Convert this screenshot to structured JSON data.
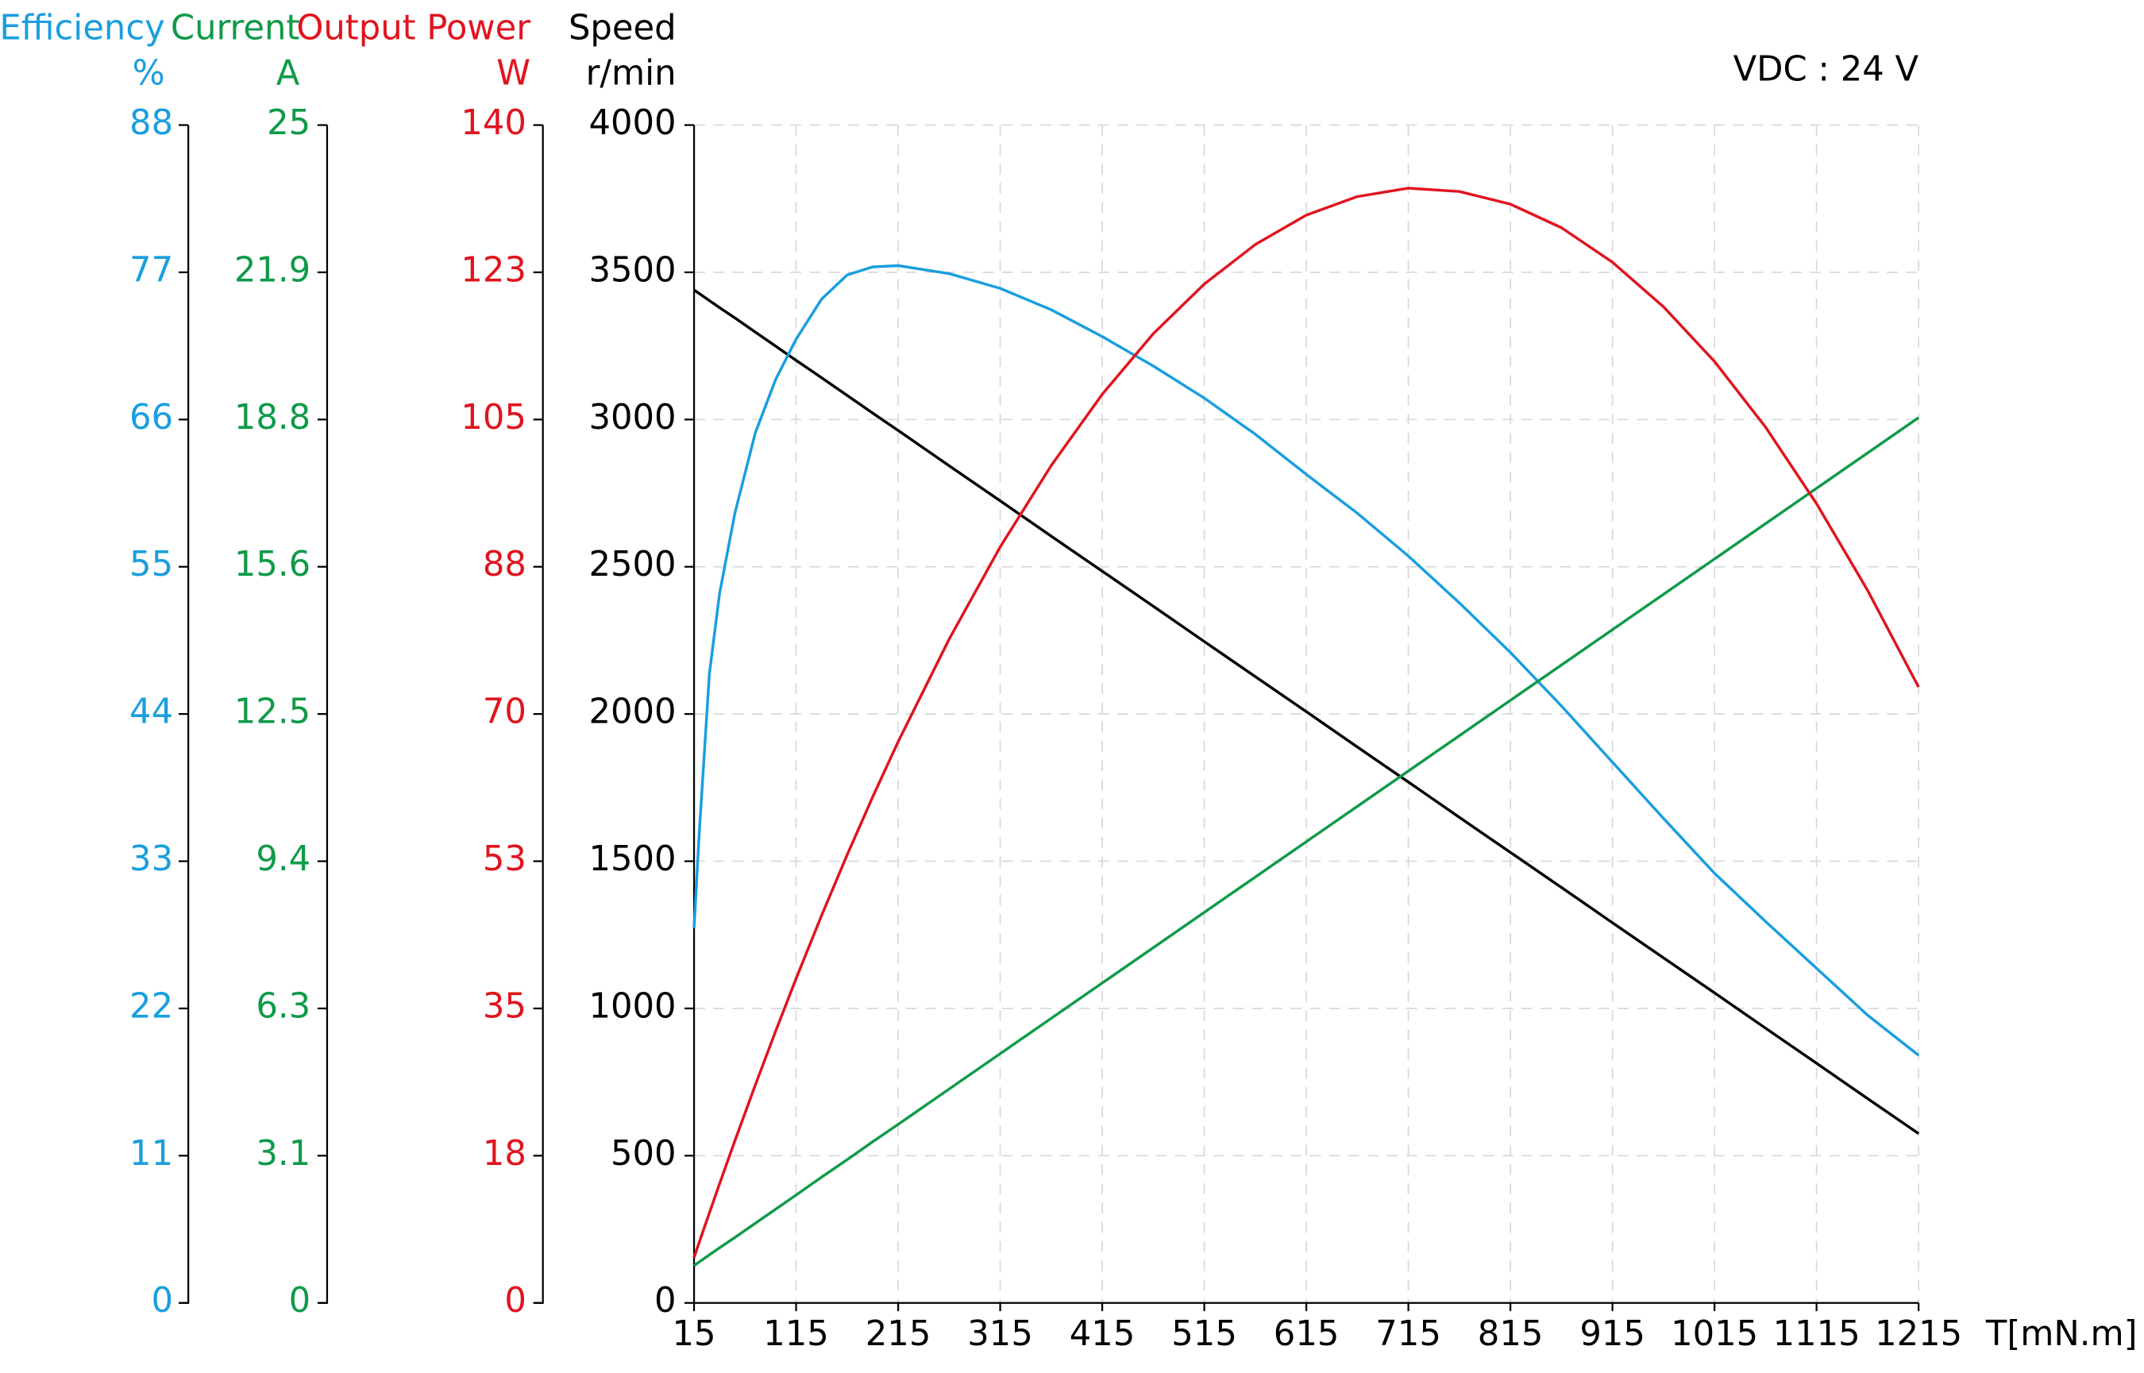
{
  "chart_data": {
    "type": "line",
    "annotation": "VDC : 24 V",
    "x_label": "T[mN.m]",
    "x": [
      15,
      20,
      30,
      40,
      55,
      75,
      95,
      115,
      140,
      165,
      190,
      215,
      265,
      315,
      365,
      415,
      465,
      515,
      565,
      615,
      665,
      715,
      765,
      815,
      865,
      915,
      965,
      1015,
      1065,
      1115,
      1165,
      1215
    ],
    "xlim": [
      15,
      1215
    ],
    "xticks": [
      15,
      115,
      215,
      315,
      415,
      515,
      615,
      715,
      815,
      915,
      1015,
      1115,
      1215
    ],
    "grid": true,
    "y_label": "Speed",
    "y_unit": "r/min",
    "y_color": "#000000",
    "ylim": [
      0,
      4000
    ],
    "yticks": [
      0,
      500,
      1000,
      1500,
      2000,
      2500,
      3000,
      3500,
      4000
    ],
    "y2_label": "Efficiency",
    "y2_unit": "%",
    "y2_color": "#1a9ede",
    "y2lim": [
      0,
      88
    ],
    "y2ticks": [
      0,
      11,
      22,
      33,
      44,
      55,
      66,
      77,
      88
    ],
    "y3_label": "Current",
    "y3_unit": "A",
    "y3_color": "#0f9a48",
    "y3lim": [
      0,
      25
    ],
    "y3ticks": [
      0,
      {
        "value": 3.125,
        "label": "3.1"
      },
      {
        "value": 6.25,
        "label": "6.3"
      },
      {
        "value": 9.375,
        "label": "9.4"
      },
      12.5,
      {
        "value": 15.625,
        "label": "15.6"
      },
      {
        "value": 18.75,
        "label": "18.8"
      },
      {
        "value": 21.875,
        "label": "21.9"
      },
      25
    ],
    "y4_label": "Output Power",
    "y4_unit": "W",
    "y4_color": "#e0141e",
    "y4lim": [
      0,
      140
    ],
    "y4ticks": [
      0,
      {
        "value": 17.5,
        "label": "18"
      },
      35,
      {
        "value": 52.5,
        "label": "53"
      },
      70,
      {
        "value": 87.5,
        "label": "88"
      },
      105,
      {
        "value": 122.5,
        "label": "123"
      },
      140
    ],
    "series": [
      {
        "axis": "y",
        "color": "#000000",
        "values": [
          3440,
          3428,
          3404,
          3380,
          3345,
          3297,
          3249,
          3201,
          3142,
          3082,
          3022,
          2963,
          2843,
          2724,
          2604,
          2485,
          2366,
          2246,
          2127,
          2008,
          1888,
          1769,
          1649,
          1530,
          1411,
          1291,
          1172,
          1053,
          933,
          814,
          694,
          575
        ]
      },
      {
        "axis": "y2",
        "color": "#1a9ede",
        "values": [
          28,
          35,
          47,
          53,
          59,
          65,
          69,
          72,
          75,
          76.8,
          77.4,
          77.5,
          76.9,
          75.8,
          74.2,
          72.2,
          70.0,
          67.6,
          64.9,
          61.9,
          59.0,
          55.8,
          52.3,
          48.6,
          44.6,
          40.4,
          36.2,
          32.1,
          28.5,
          25.0,
          21.5,
          18.5
        ]
      },
      {
        "axis": "y3",
        "color": "#0f9a48",
        "values": [
          0.79,
          0.87,
          1.02,
          1.17,
          1.39,
          1.69,
          1.99,
          2.29,
          2.67,
          3.04,
          3.42,
          3.79,
          4.54,
          5.29,
          6.04,
          6.79,
          7.54,
          8.29,
          9.04,
          9.79,
          10.54,
          11.29,
          12.04,
          12.79,
          13.54,
          14.29,
          15.04,
          15.79,
          16.54,
          17.29,
          18.04,
          18.79
        ]
      },
      {
        "axis": "y4",
        "color": "#e0141e",
        "values": [
          5.4,
          7.18,
          10.69,
          14.16,
          19.27,
          25.89,
          32.32,
          38.55,
          46.06,
          53.25,
          60.13,
          66.71,
          78.9,
          89.86,
          99.53,
          108.0,
          115.2,
          121.1,
          125.8,
          129.3,
          131.5,
          132.5,
          132.1,
          130.6,
          127.8,
          123.7,
          118.4,
          111.9,
          104.1,
          95.0,
          84.7,
          73.2
        ]
      }
    ]
  }
}
